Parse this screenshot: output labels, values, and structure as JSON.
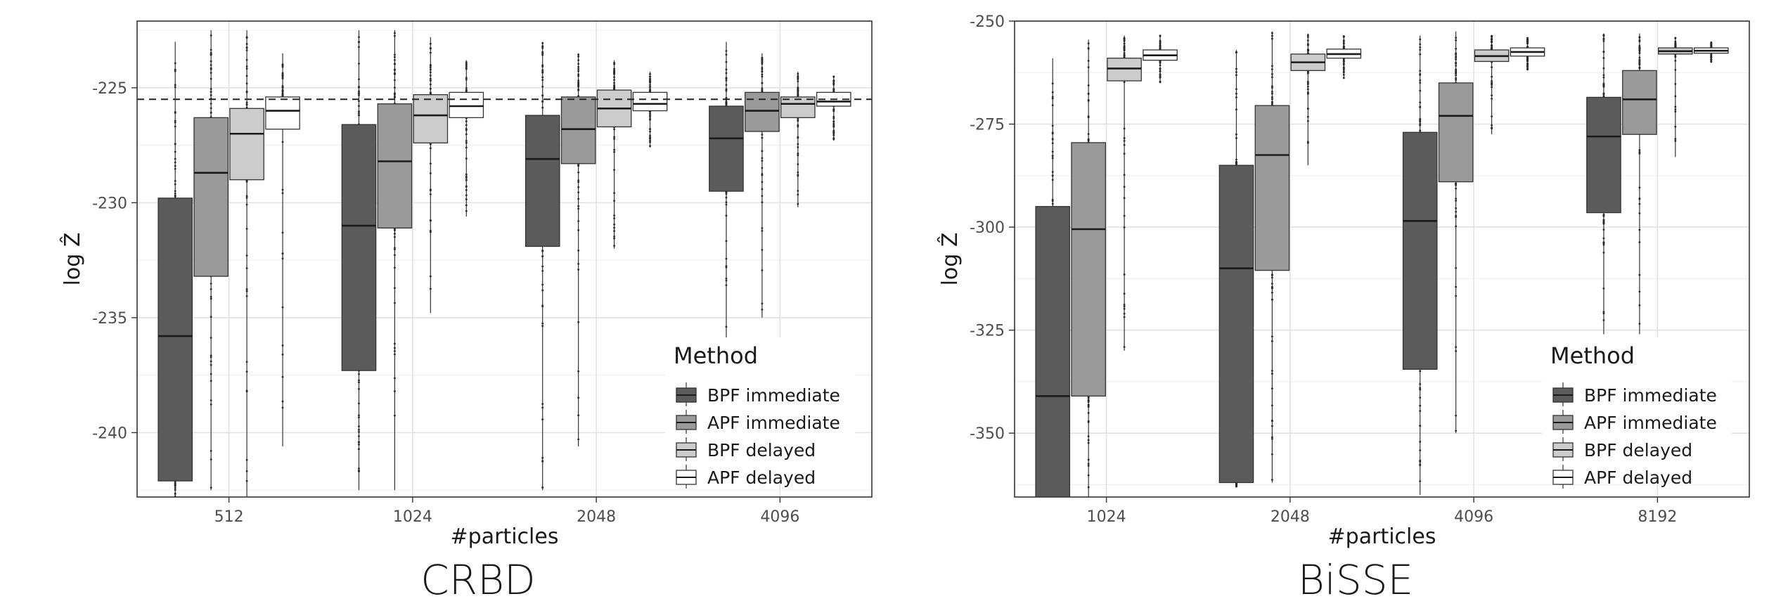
{
  "chart_data": [
    {
      "type": "boxplot",
      "caption": "CRBD",
      "xlabel": "#particles",
      "ylabel": "log Ẑ",
      "ylim": [
        -242.8,
        -222.1
      ],
      "yticks": [
        -225,
        -230,
        -235,
        -240
      ],
      "categories": [
        "512",
        "1024",
        "2048",
        "4096"
      ],
      "reference_line": -225.5,
      "grid": true,
      "legend": {
        "title": "Method",
        "placement": "bottom-right",
        "entries": [
          "BPF immediate",
          "APF immediate",
          "BPF delayed",
          "APF delayed"
        ]
      },
      "series": [
        {
          "name": "BPF immediate",
          "color": "#5b5b5b",
          "boxes": [
            {
              "q1": -242.1,
              "median": -235.8,
              "q3": -229.8,
              "whisker_low": -243.0,
              "whisker_high": -223.0
            },
            {
              "q1": -237.3,
              "median": -231.0,
              "q3": -226.6,
              "whisker_low": -242.5,
              "whisker_high": -222.5
            },
            {
              "q1": -231.9,
              "median": -228.1,
              "q3": -226.2,
              "whisker_low": -242.5,
              "whisker_high": -223.0
            },
            {
              "q1": -229.5,
              "median": -227.2,
              "q3": -225.8,
              "whisker_low": -236.5,
              "whisker_high": -223.0
            }
          ]
        },
        {
          "name": "APF immediate",
          "color": "#9a9a9a",
          "boxes": [
            {
              "q1": -233.2,
              "median": -228.7,
              "q3": -226.3,
              "whisker_low": -242.5,
              "whisker_high": -222.5
            },
            {
              "q1": -231.1,
              "median": -228.2,
              "q3": -225.7,
              "whisker_low": -242.5,
              "whisker_high": -222.5
            },
            {
              "q1": -228.3,
              "median": -226.8,
              "q3": -225.4,
              "whisker_low": -240.6,
              "whisker_high": -223.5
            },
            {
              "q1": -226.9,
              "median": -226.0,
              "q3": -225.2,
              "whisker_low": -235.0,
              "whisker_high": -223.5
            }
          ]
        },
        {
          "name": "BPF delayed",
          "color": "#cccccc",
          "boxes": [
            {
              "q1": -229.0,
              "median": -227.0,
              "q3": -225.9,
              "whisker_low": -243.0,
              "whisker_high": -222.5
            },
            {
              "q1": -227.4,
              "median": -226.2,
              "q3": -225.3,
              "whisker_low": -234.8,
              "whisker_high": -222.8
            },
            {
              "q1": -226.7,
              "median": -225.9,
              "q3": -225.1,
              "whisker_low": -232.0,
              "whisker_high": -223.8
            },
            {
              "q1": -226.3,
              "median": -225.7,
              "q3": -225.4,
              "whisker_low": -230.2,
              "whisker_high": -224.3
            }
          ]
        },
        {
          "name": "APF delayed",
          "color": "#ffffff",
          "boxes": [
            {
              "q1": -226.8,
              "median": -226.0,
              "q3": -225.4,
              "whisker_low": -240.6,
              "whisker_high": -223.5
            },
            {
              "q1": -226.3,
              "median": -225.8,
              "q3": -225.2,
              "whisker_low": -230.6,
              "whisker_high": -223.8
            },
            {
              "q1": -226.0,
              "median": -225.7,
              "q3": -225.2,
              "whisker_low": -227.6,
              "whisker_high": -224.3
            },
            {
              "q1": -225.8,
              "median": -225.6,
              "q3": -225.2,
              "whisker_low": -227.3,
              "whisker_high": -224.5
            }
          ]
        }
      ]
    },
    {
      "type": "boxplot",
      "caption": "BiSSE",
      "xlabel": "#particles",
      "ylabel": "log Ẑ",
      "ylim": [
        -365.5,
        -250
      ],
      "yticks": [
        -250,
        -275,
        -300,
        -325,
        -350
      ],
      "categories": [
        "1024",
        "2048",
        "4096",
        "8192"
      ],
      "grid": true,
      "legend": {
        "title": "Method",
        "placement": "bottom-right",
        "entries": [
          "BPF immediate",
          "APF immediate",
          "BPF delayed",
          "APF delayed"
        ]
      },
      "series": [
        {
          "name": "BPF immediate",
          "color": "#5b5b5b",
          "boxes": [
            {
              "q1": -366.0,
              "median": -341.0,
              "q3": -295.0,
              "whisker_low": -366.0,
              "whisker_high": -259.0
            },
            {
              "q1": -362.0,
              "median": -310.0,
              "q3": -285.0,
              "whisker_low": -363.0,
              "whisker_high": -257.0
            },
            {
              "q1": -334.5,
              "median": -298.5,
              "q3": -277.0,
              "whisker_low": -365.0,
              "whisker_high": -253.5
            },
            {
              "q1": -296.5,
              "median": -278.0,
              "q3": -268.5,
              "whisker_low": -326.0,
              "whisker_high": -253.0
            }
          ]
        },
        {
          "name": "APF immediate",
          "color": "#9a9a9a",
          "boxes": [
            {
              "q1": -341.0,
              "median": -300.5,
              "q3": -279.5,
              "whisker_low": -366.0,
              "whisker_high": -254.5
            },
            {
              "q1": -310.5,
              "median": -282.5,
              "q3": -270.5,
              "whisker_low": -362.0,
              "whisker_high": -252.5
            },
            {
              "q1": -289.0,
              "median": -273.0,
              "q3": -265.0,
              "whisker_low": -350.0,
              "whisker_high": -252.5
            },
            {
              "q1": -277.5,
              "median": -269.0,
              "q3": -262.0,
              "whisker_low": -326.0,
              "whisker_high": -253.0
            }
          ]
        },
        {
          "name": "BPF delayed",
          "color": "#cccccc",
          "boxes": [
            {
              "q1": -264.5,
              "median": -261.5,
              "q3": -259.0,
              "whisker_low": -330.0,
              "whisker_high": -253.5
            },
            {
              "q1": -262.0,
              "median": -260.0,
              "q3": -258.0,
              "whisker_low": -285.0,
              "whisker_high": -253.0
            },
            {
              "q1": -259.8,
              "median": -258.5,
              "q3": -257.0,
              "whisker_low": -277.5,
              "whisker_high": -253.5
            },
            {
              "q1": -258.0,
              "median": -257.3,
              "q3": -256.5,
              "whisker_low": -283.0,
              "whisker_high": -254.0
            }
          ]
        },
        {
          "name": "APF delayed",
          "color": "#ffffff",
          "boxes": [
            {
              "q1": -259.5,
              "median": -258.3,
              "q3": -257.0,
              "whisker_low": -265.0,
              "whisker_high": -253.5
            },
            {
              "q1": -259.0,
              "median": -258.0,
              "q3": -256.8,
              "whisker_low": -264.0,
              "whisker_high": -253.5
            },
            {
              "q1": -258.5,
              "median": -257.5,
              "q3": -256.5,
              "whisker_low": -262.0,
              "whisker_high": -254.0
            },
            {
              "q1": -257.8,
              "median": -257.2,
              "q3": -256.5,
              "whisker_low": -260.0,
              "whisker_high": -255.0
            }
          ]
        }
      ]
    }
  ]
}
